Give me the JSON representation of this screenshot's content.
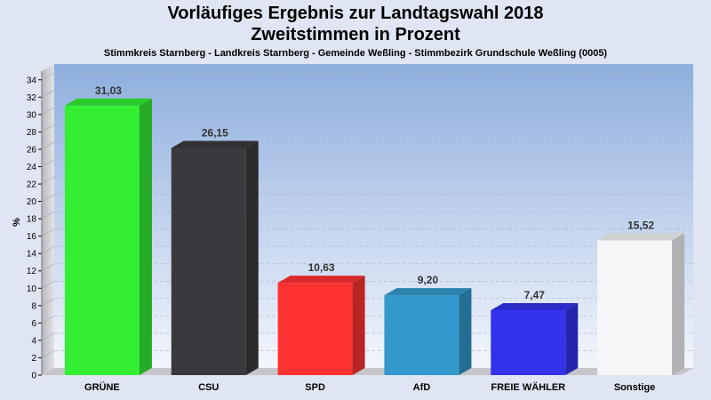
{
  "chart_data": {
    "type": "bar",
    "title": "Vorläufiges Ergebnis zur Landtagswahl 2018",
    "subtitle": "Zweitstimmen in Prozent",
    "caption": "Stimmkreis Starnberg - Landkreis Starnberg - Gemeinde Weßling - Stimmbezirk Grundschule Weßling (0005)",
    "ylabel": "%",
    "xlabel": "",
    "ylim": [
      0,
      35
    ],
    "yticks": [
      0,
      2,
      4,
      6,
      8,
      10,
      12,
      14,
      16,
      18,
      20,
      22,
      24,
      26,
      28,
      30,
      32,
      34
    ],
    "categories": [
      "GRÜNE",
      "CSU",
      "SPD",
      "AfD",
      "FREIE WÄHLER",
      "Sonstige"
    ],
    "values": [
      31.03,
      26.15,
      10.63,
      9.2,
      7.47,
      15.52
    ],
    "value_labels": [
      "31,03",
      "26,15",
      "10,63",
      "9,20",
      "7,47",
      "15,52"
    ],
    "colors": [
      "#33ee33",
      "#3a3a3e",
      "#ff3333",
      "#3399cc",
      "#3333ee",
      "#f6f6f8"
    ],
    "grid": true,
    "legend": "none"
  }
}
